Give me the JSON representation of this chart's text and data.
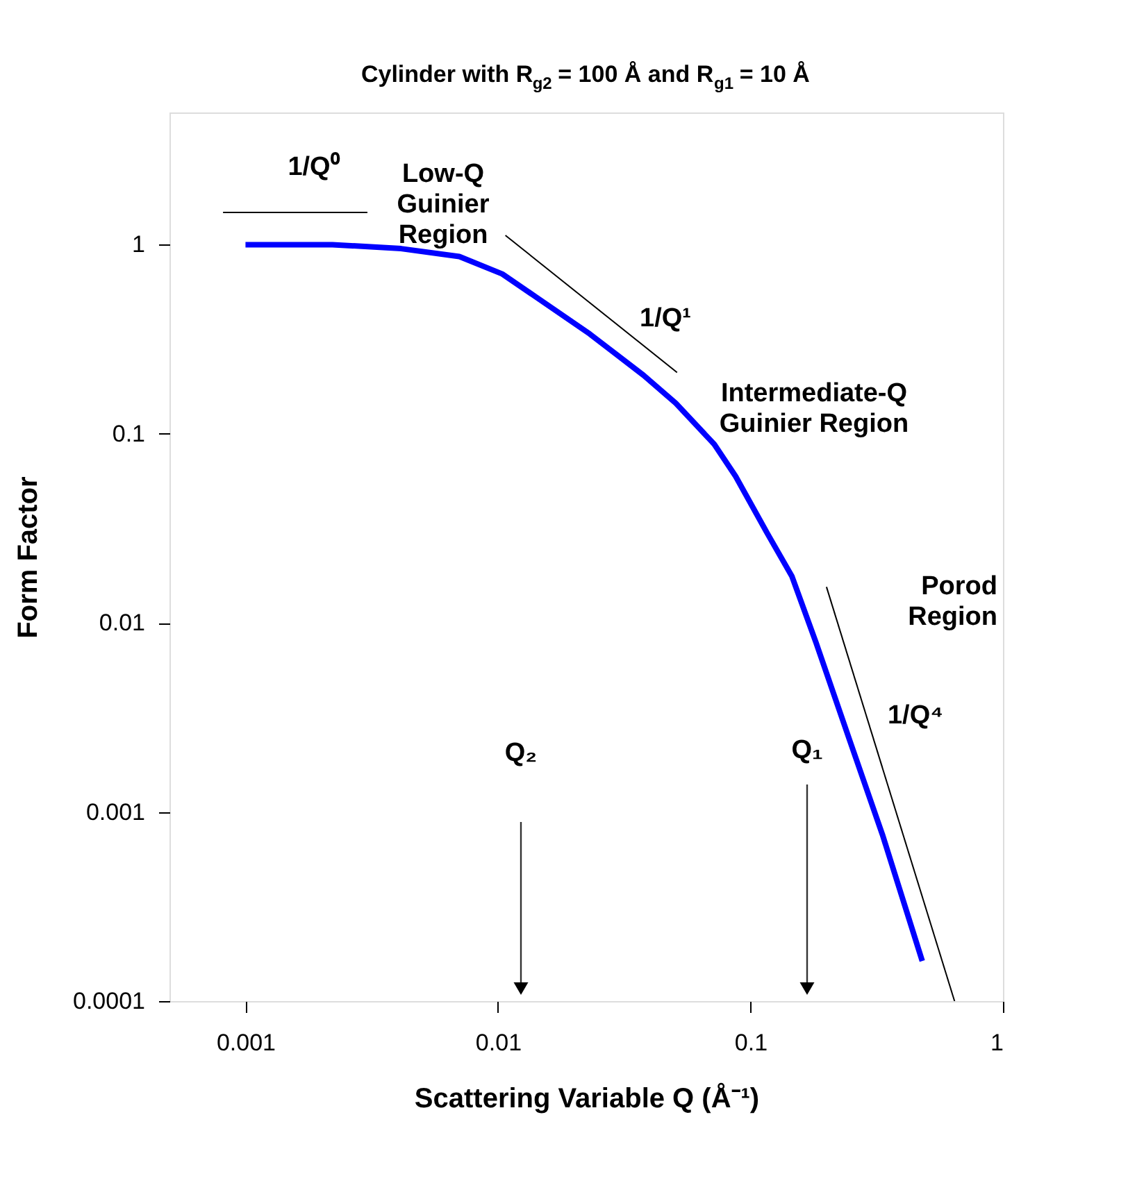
{
  "chart_data": {
    "type": "line",
    "title": "Cylinder with R$_{g2}$ = 100 Å and R$_{g1}$ = 10 Å",
    "xlabel": "Scattering Variable Q (Å⁻¹)",
    "ylabel": "Form Factor",
    "log": "xy",
    "grid": false,
    "xlim": [
      0.0005,
      1
    ],
    "xticks": [
      0.001,
      0.01,
      0.1,
      1
    ],
    "ylim": [
      0.0001,
      5
    ],
    "yticks": [
      0.0001,
      0.001,
      0.01,
      0.1,
      1
    ],
    "series": [
      {
        "color": "#0000ff",
        "x": [
          0.001,
          0.00221,
          0.00413,
          0.00703,
          0.0104,
          0.0141,
          0.0231,
          0.0377,
          0.0506,
          0.0719,
          0.0873,
          0.116,
          0.146,
          0.182,
          0.248,
          0.333,
          0.479
        ],
        "values": [
          1,
          1,
          0.953,
          0.865,
          0.7,
          0.53,
          0.337,
          0.204,
          0.145,
          0.088,
          0.0596,
          0.0301,
          0.0176,
          0.00783,
          0.00236,
          0.00076,
          0.000163
        ]
      },
      {
        "color": "#000000",
        "x": [
          0.000815,
          0.00304
        ],
        "values": [
          1.48,
          1.48
        ]
      },
      {
        "color": "#000000",
        "x": [
          0.0107,
          0.0512
        ],
        "values": [
          1.12,
          0.211
        ]
      },
      {
        "color": "#000000",
        "x": [
          0.2,
          0.643
        ],
        "values": [
          0.0155,
          0.0001
        ]
      }
    ],
    "annotations": [
      "1/Q⁰",
      "Low-Q\nGuinier\nRegion",
      "1/Q¹",
      "Intermediate-Q\nGuinier Region",
      "Porod\nRegion",
      "1/Q⁴",
      "Q₂",
      "Q₁"
    ]
  }
}
